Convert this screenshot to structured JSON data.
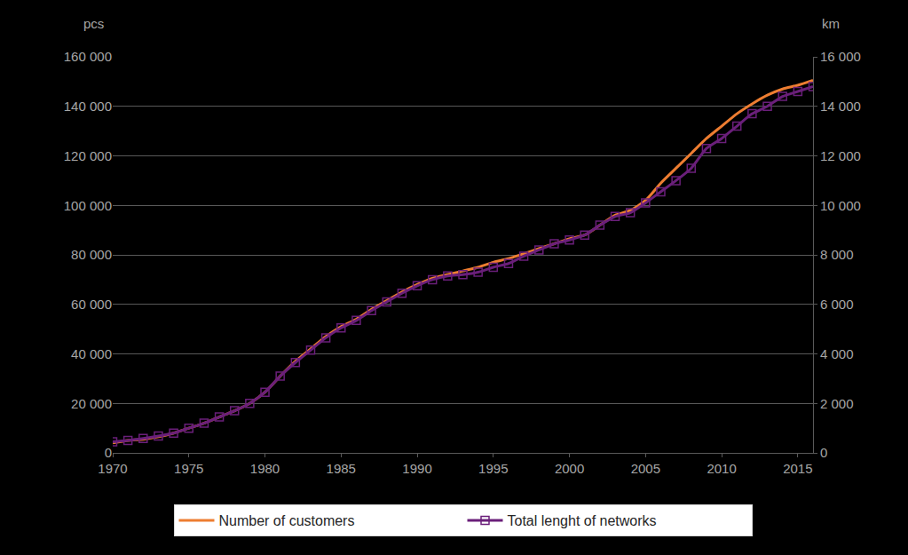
{
  "chart_data": {
    "type": "line",
    "ylabel": "pcs",
    "y2label": "km",
    "x": [
      1970,
      1971,
      1972,
      1973,
      1974,
      1975,
      1976,
      1977,
      1978,
      1979,
      1980,
      1981,
      1982,
      1983,
      1984,
      1985,
      1986,
      1987,
      1988,
      1989,
      1990,
      1991,
      1992,
      1993,
      1994,
      1995,
      1996,
      1997,
      1998,
      1999,
      2000,
      2001,
      2002,
      2003,
      2004,
      2005,
      2006,
      2007,
      2008,
      2009,
      2010,
      2011,
      2012,
      2013,
      2014,
      2015,
      2016
    ],
    "series": [
      {
        "name": "Number of customers",
        "color": "#ed7d31",
        "line_style": "solid",
        "values": [
          4000,
          5000,
          5500,
          6500,
          8000,
          10000,
          12000,
          14500,
          17000,
          20000,
          24500,
          31000,
          37000,
          42000,
          47000,
          51000,
          54000,
          58000,
          61500,
          65000,
          68000,
          70500,
          72000,
          73500,
          75000,
          77000,
          78500,
          80500,
          82500,
          84500,
          86500,
          88000,
          92000,
          96000,
          98000,
          102000,
          109000,
          115000,
          121000,
          127000,
          132000,
          137000,
          141000,
          144500,
          147000,
          148500,
          150500
        ]
      },
      {
        "name": "Total lenght of networks",
        "color": "#6a1f7a",
        "line_style": "solid",
        "marker": "square-open",
        "axis": "y2",
        "values": [
          450,
          500,
          580,
          680,
          800,
          1000,
          1200,
          1450,
          1700,
          2000,
          2450,
          3100,
          3650,
          4150,
          4650,
          5050,
          5350,
          5750,
          6100,
          6450,
          6750,
          7000,
          7150,
          7200,
          7300,
          7500,
          7650,
          7950,
          8200,
          8450,
          8600,
          8800,
          9200,
          9550,
          9700,
          10100,
          10550,
          11000,
          11500,
          12300,
          12700,
          13200,
          13700,
          14000,
          14400,
          14600,
          14800
        ]
      }
    ],
    "xlim": [
      1970,
      2016
    ],
    "xticks": [
      1970,
      1975,
      1980,
      1985,
      1990,
      1995,
      2000,
      2005,
      2010,
      2015
    ],
    "ylim": [
      0,
      160000
    ],
    "yticks": [
      0,
      {
        "value": 20000,
        "label": "20 000"
      },
      {
        "value": 40000,
        "label": "40 000"
      },
      {
        "value": 60000,
        "label": "60 000"
      },
      {
        "value": 80000,
        "label": "80 000"
      },
      {
        "value": 100000,
        "label": "100 000"
      },
      {
        "value": 120000,
        "label": "120 000"
      },
      {
        "value": 140000,
        "label": "140 000"
      },
      {
        "value": 160000,
        "label": "160 000"
      }
    ],
    "y2lim": [
      0,
      16000
    ],
    "y2ticks": [
      0,
      {
        "value": 2000,
        "label": "2 000"
      },
      {
        "value": 4000,
        "label": "4 000"
      },
      {
        "value": 6000,
        "label": "6 000"
      },
      {
        "value": 8000,
        "label": "8 000"
      },
      {
        "value": 10000,
        "label": "10 000"
      },
      {
        "value": 12000,
        "label": "12 000"
      },
      {
        "value": 14000,
        "label": "14 000"
      },
      {
        "value": 16000,
        "label": "16 000"
      }
    ],
    "grid": true,
    "legend": "bottom"
  }
}
